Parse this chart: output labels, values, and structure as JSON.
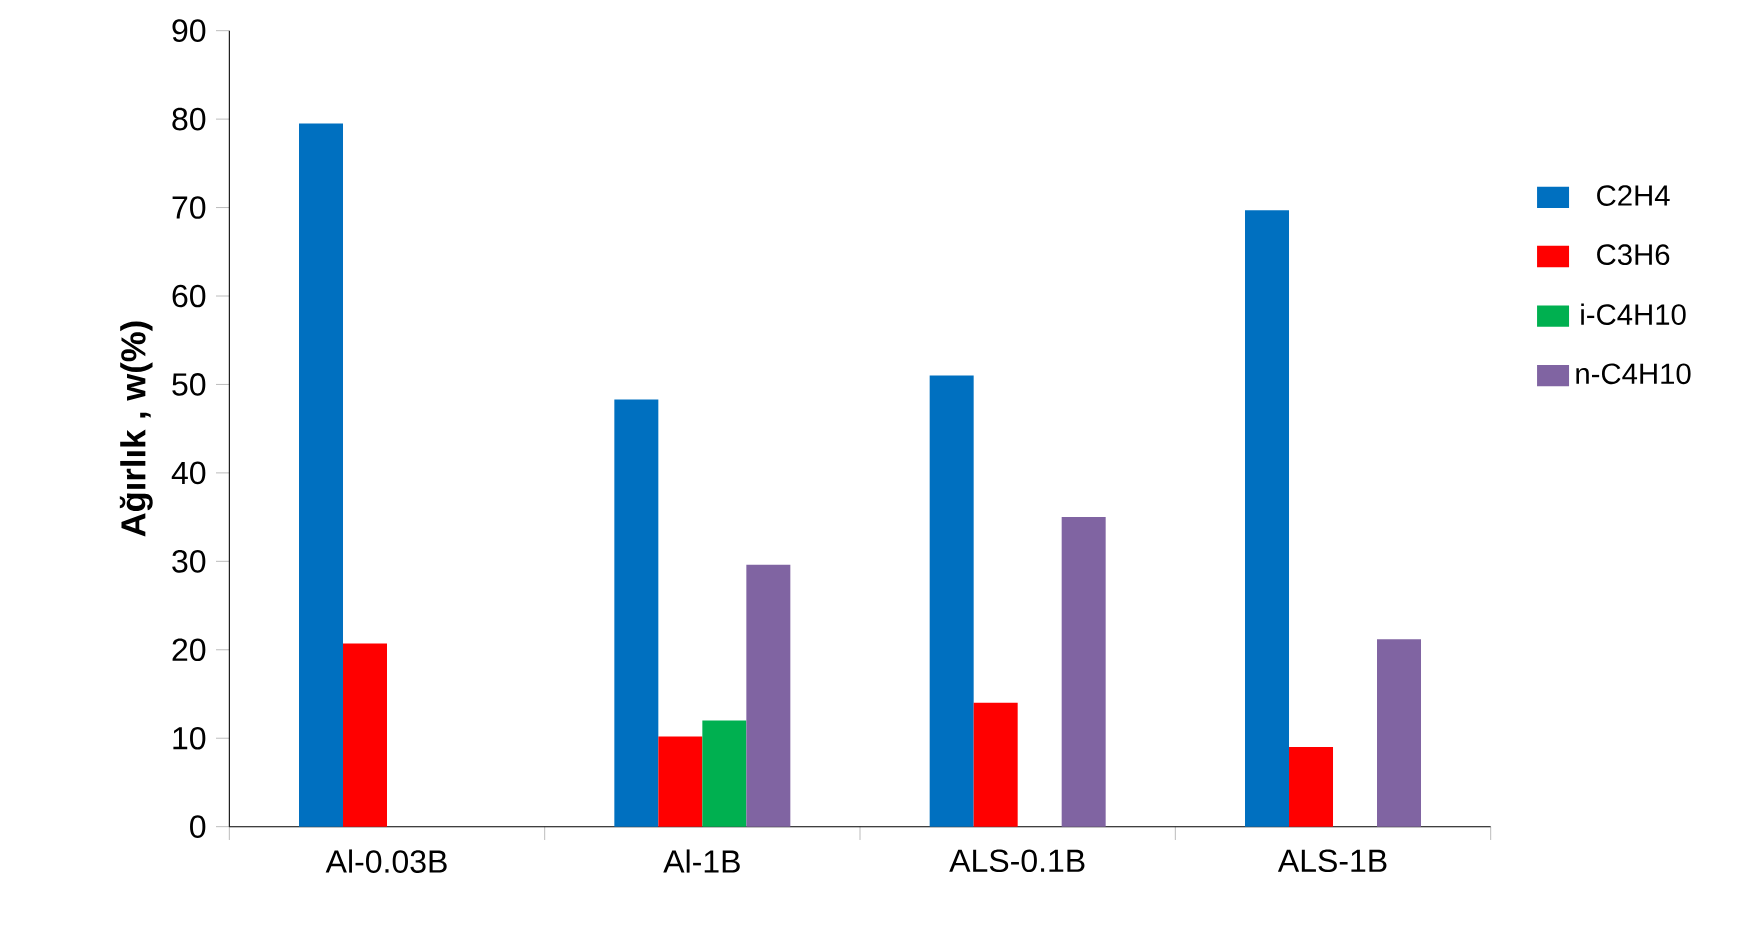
{
  "chart_data": {
    "type": "bar",
    "ylabel": "Ağırlık , w(%)",
    "categories": [
      "Al-0.03B",
      "Al-1B",
      "ALS-0.1B",
      "ALS-1B"
    ],
    "series": [
      {
        "name": "C2H4",
        "color": "#0070c0",
        "values": [
          79.5,
          48.3,
          51,
          69.7
        ]
      },
      {
        "name": "C3H6",
        "color": "#ff0000",
        "values": [
          20.7,
          10.2,
          14,
          9
        ]
      },
      {
        "name": "i-C4H10",
        "color": "#00b050",
        "values": [
          null,
          12,
          null,
          null
        ]
      },
      {
        "name": "n-C4H10",
        "color": "#8064a2",
        "values": [
          null,
          29.6,
          35,
          21.2
        ]
      }
    ],
    "ylim": [
      0,
      90
    ],
    "yticks": [
      0,
      10,
      20,
      30,
      40,
      50,
      60,
      70,
      80,
      90
    ],
    "grid": false,
    "legend": "right"
  }
}
